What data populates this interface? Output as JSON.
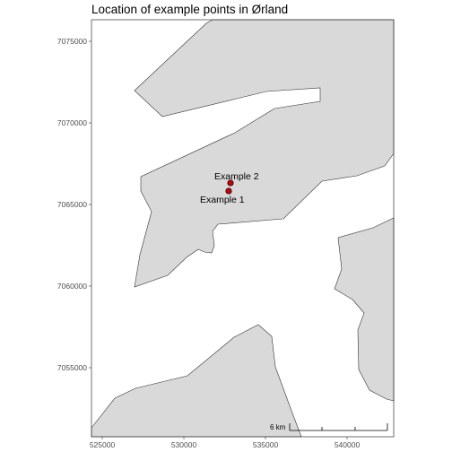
{
  "map": {
    "title": "Location of example points in Ørland",
    "land_fill": "#d9d9d9",
    "point_fill": "#cc0000",
    "x_ticks": [
      "525000",
      "530000",
      "535000",
      "540000"
    ],
    "y_ticks": [
      "7075000",
      "7070000",
      "7065000",
      "7060000",
      "7055000"
    ],
    "points": [
      {
        "label": "Example 2"
      },
      {
        "label": "Example 1"
      }
    ],
    "scale_bar": {
      "label": "6 km"
    }
  }
}
